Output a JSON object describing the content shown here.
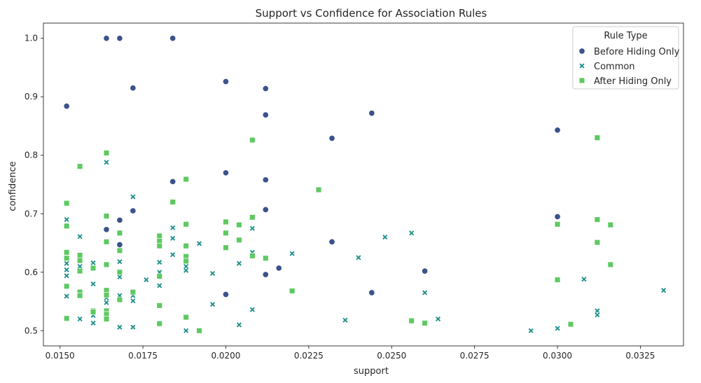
{
  "chart_data": {
    "type": "scatter",
    "title": "Support vs Confidence for Association Rules",
    "xlabel": "support",
    "ylabel": "confidence",
    "xlim": [
      0.0145,
      0.0338
    ],
    "ylim": [
      0.474,
      1.026
    ],
    "xticks": [
      0.015,
      0.0175,
      0.02,
      0.0225,
      0.025,
      0.0275,
      0.03,
      0.0325
    ],
    "xtick_labels": [
      "0.0150",
      "0.0175",
      "0.0200",
      "0.0225",
      "0.0250",
      "0.0275",
      "0.0300",
      "0.0325"
    ],
    "yticks": [
      0.5,
      0.6,
      0.7,
      0.8,
      0.9,
      1.0
    ],
    "ytick_labels": [
      "0.5",
      "0.6",
      "0.7",
      "0.8",
      "0.9",
      "1.0"
    ],
    "grid": false,
    "legend": {
      "title": "Rule Type",
      "placement": "top-right"
    },
    "series": [
      {
        "name": "Before Hiding Only",
        "marker": "circle",
        "color": "#3b528b",
        "points": [
          [
            0.0164,
            1.0
          ],
          [
            0.0168,
            1.0
          ],
          [
            0.0184,
            1.0
          ],
          [
            0.02,
            0.926
          ],
          [
            0.0172,
            0.915
          ],
          [
            0.0212,
            0.914
          ],
          [
            0.0152,
            0.884
          ],
          [
            0.0244,
            0.872
          ],
          [
            0.0212,
            0.869
          ],
          [
            0.03,
            0.843
          ],
          [
            0.0232,
            0.829
          ],
          [
            0.02,
            0.77
          ],
          [
            0.0212,
            0.758
          ],
          [
            0.0184,
            0.755
          ],
          [
            0.0212,
            0.707
          ],
          [
            0.0172,
            0.705
          ],
          [
            0.03,
            0.695
          ],
          [
            0.0168,
            0.689
          ],
          [
            0.0164,
            0.673
          ],
          [
            0.0232,
            0.652
          ],
          [
            0.0168,
            0.647
          ],
          [
            0.0216,
            0.607
          ],
          [
            0.026,
            0.602
          ],
          [
            0.0212,
            0.596
          ],
          [
            0.0244,
            0.565
          ],
          [
            0.02,
            0.562
          ]
        ]
      },
      {
        "name": "Common",
        "marker": "x",
        "color": "#21918c",
        "points": [
          [
            0.0152,
            0.69
          ],
          [
            0.0152,
            0.615
          ],
          [
            0.0152,
            0.604
          ],
          [
            0.0152,
            0.594
          ],
          [
            0.0152,
            0.559
          ],
          [
            0.0156,
            0.661
          ],
          [
            0.0156,
            0.61
          ],
          [
            0.0156,
            0.52
          ],
          [
            0.016,
            0.616
          ],
          [
            0.016,
            0.58
          ],
          [
            0.016,
            0.526
          ],
          [
            0.016,
            0.513
          ],
          [
            0.0164,
            0.788
          ],
          [
            0.0164,
            0.556
          ],
          [
            0.0164,
            0.548
          ],
          [
            0.0168,
            0.618
          ],
          [
            0.0168,
            0.592
          ],
          [
            0.0168,
            0.56
          ],
          [
            0.0168,
            0.506
          ],
          [
            0.0172,
            0.729
          ],
          [
            0.0172,
            0.56
          ],
          [
            0.0172,
            0.551
          ],
          [
            0.0172,
            0.506
          ],
          [
            0.0176,
            0.587
          ],
          [
            0.018,
            0.617
          ],
          [
            0.018,
            0.6
          ],
          [
            0.018,
            0.577
          ],
          [
            0.0184,
            0.676
          ],
          [
            0.0184,
            0.658
          ],
          [
            0.0184,
            0.63
          ],
          [
            0.0188,
            0.61
          ],
          [
            0.0188,
            0.603
          ],
          [
            0.0188,
            0.5
          ],
          [
            0.0192,
            0.649
          ],
          [
            0.0196,
            0.598
          ],
          [
            0.0196,
            0.545
          ],
          [
            0.0204,
            0.615
          ],
          [
            0.0204,
            0.51
          ],
          [
            0.0208,
            0.675
          ],
          [
            0.0208,
            0.634
          ],
          [
            0.0208,
            0.536
          ],
          [
            0.022,
            0.632
          ],
          [
            0.0236,
            0.518
          ],
          [
            0.024,
            0.625
          ],
          [
            0.0248,
            0.66
          ],
          [
            0.0256,
            0.667
          ],
          [
            0.0256,
            0.516
          ],
          [
            0.026,
            0.565
          ],
          [
            0.0264,
            0.52
          ],
          [
            0.0292,
            0.5
          ],
          [
            0.03,
            0.504
          ],
          [
            0.0308,
            0.588
          ],
          [
            0.0312,
            0.534
          ],
          [
            0.0312,
            0.527
          ],
          [
            0.0332,
            0.569
          ]
        ]
      },
      {
        "name": "After Hiding Only",
        "marker": "square",
        "color": "#5ec962",
        "points": [
          [
            0.0152,
            0.718
          ],
          [
            0.0152,
            0.679
          ],
          [
            0.0152,
            0.634
          ],
          [
            0.0152,
            0.624
          ],
          [
            0.0152,
            0.576
          ],
          [
            0.0152,
            0.521
          ],
          [
            0.0156,
            0.781
          ],
          [
            0.0156,
            0.629
          ],
          [
            0.0156,
            0.62
          ],
          [
            0.0156,
            0.602
          ],
          [
            0.0156,
            0.566
          ],
          [
            0.0156,
            0.56
          ],
          [
            0.016,
            0.607
          ],
          [
            0.016,
            0.534
          ],
          [
            0.016,
            0.532
          ],
          [
            0.0164,
            0.804
          ],
          [
            0.0164,
            0.696
          ],
          [
            0.0164,
            0.652
          ],
          [
            0.0164,
            0.613
          ],
          [
            0.0164,
            0.569
          ],
          [
            0.0164,
            0.561
          ],
          [
            0.0164,
            0.534
          ],
          [
            0.0164,
            0.528
          ],
          [
            0.0164,
            0.52
          ],
          [
            0.0168,
            0.667
          ],
          [
            0.0168,
            0.637
          ],
          [
            0.0168,
            0.6
          ],
          [
            0.0168,
            0.553
          ],
          [
            0.0172,
            0.566
          ],
          [
            0.018,
            0.662
          ],
          [
            0.018,
            0.653
          ],
          [
            0.018,
            0.645
          ],
          [
            0.018,
            0.593
          ],
          [
            0.018,
            0.543
          ],
          [
            0.018,
            0.512
          ],
          [
            0.0184,
            0.72
          ],
          [
            0.0188,
            0.759
          ],
          [
            0.0188,
            0.682
          ],
          [
            0.0188,
            0.645
          ],
          [
            0.0188,
            0.627
          ],
          [
            0.0188,
            0.619
          ],
          [
            0.0188,
            0.523
          ],
          [
            0.0192,
            0.5
          ],
          [
            0.02,
            0.686
          ],
          [
            0.02,
            0.667
          ],
          [
            0.02,
            0.642
          ],
          [
            0.0204,
            0.681
          ],
          [
            0.0204,
            0.655
          ],
          [
            0.0208,
            0.826
          ],
          [
            0.0208,
            0.694
          ],
          [
            0.0208,
            0.628
          ],
          [
            0.0212,
            0.624
          ],
          [
            0.022,
            0.568
          ],
          [
            0.0228,
            0.741
          ],
          [
            0.0256,
            0.517
          ],
          [
            0.026,
            0.513
          ],
          [
            0.03,
            0.682
          ],
          [
            0.03,
            0.587
          ],
          [
            0.0304,
            0.511
          ],
          [
            0.0312,
            0.83
          ],
          [
            0.0312,
            0.69
          ],
          [
            0.0312,
            0.651
          ],
          [
            0.0316,
            0.681
          ],
          [
            0.0316,
            0.613
          ]
        ]
      }
    ]
  }
}
